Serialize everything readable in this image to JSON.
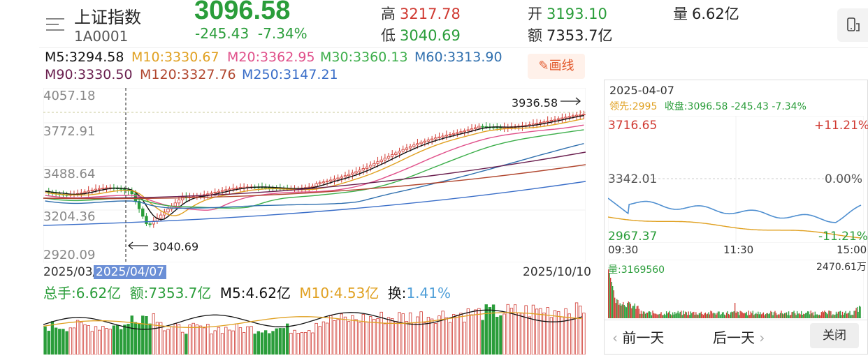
{
  "header": {
    "index_name": "上证指数",
    "index_code": "1A0001",
    "price": "3096.58",
    "change": "-245.43",
    "change_pct": "-7.34%",
    "high_label": "高",
    "high_value": "3217.78",
    "low_label": "低",
    "low_value": "3040.69",
    "open_label": "开",
    "open_value": "3193.10",
    "amount_label": "额",
    "amount_value": "7353.7亿",
    "volume_label": "量",
    "volume_value": "6.62亿"
  },
  "ma_legend": [
    {
      "text": "M5:3294.58",
      "color": "#111111"
    },
    {
      "text": "M10:3330.67",
      "color": "#e0a020"
    },
    {
      "text": "M20:3362.95",
      "color": "#e0508a"
    },
    {
      "text": "M30:3360.13",
      "color": "#3cae4a"
    },
    {
      "text": "M60:3313.90",
      "color": "#2f6fae"
    },
    {
      "text": "M90:3330.50",
      "color": "#6a1f4f"
    },
    {
      "text": "M120:3327.76",
      "color": "#b1472f"
    },
    {
      "text": "M250:3147.21",
      "color": "#3a6ec8"
    }
  ],
  "draw_button": "画线",
  "main_chart": {
    "y_ticks": [
      "4057.18",
      "3772.91",
      "3488.64",
      "3204.36",
      "2920.09"
    ],
    "x_start": "2025/03/",
    "selected_date": "2025/04/07",
    "x_end": "2025/10/10",
    "high_annotation": "3936.58",
    "low_annotation": "3040.69"
  },
  "volume_legend": {
    "total_label": "总手:",
    "total_value": "6.62亿",
    "amount_label": "额:",
    "amount_value": "7353.7亿",
    "m5_label": "M5:",
    "m5_value": "4.62亿",
    "m10_label": "M10:",
    "m10_value": "4.53亿",
    "turnover_label": "换:",
    "turnover_value": "1.41%"
  },
  "intraday_panel": {
    "date": "2025-04-07",
    "leader_label": "领先:",
    "leader_value": "2995",
    "close_label": "收盘:",
    "close_value": "3096.58 -245.43 -7.34%",
    "y_top": "3716.65",
    "y_mid": "3342.01",
    "y_bot": "2967.37",
    "pct_top": "+11.21%",
    "pct_mid": "0.00%",
    "pct_bot": "-11.21%",
    "t_start": "09:30",
    "t_mid": "11:30",
    "t_end": "15:00",
    "volume_label": "量:3169560",
    "volume_max": "2470.61万",
    "prev_day": "前一天",
    "next_day": "后一天",
    "close_button": "关闭"
  },
  "colors": {
    "up": "#d03a32",
    "down": "#2a9d3a",
    "accent": "#e2582b",
    "price_line": "#4f8fd0",
    "avg_line": "#e0a020"
  }
}
